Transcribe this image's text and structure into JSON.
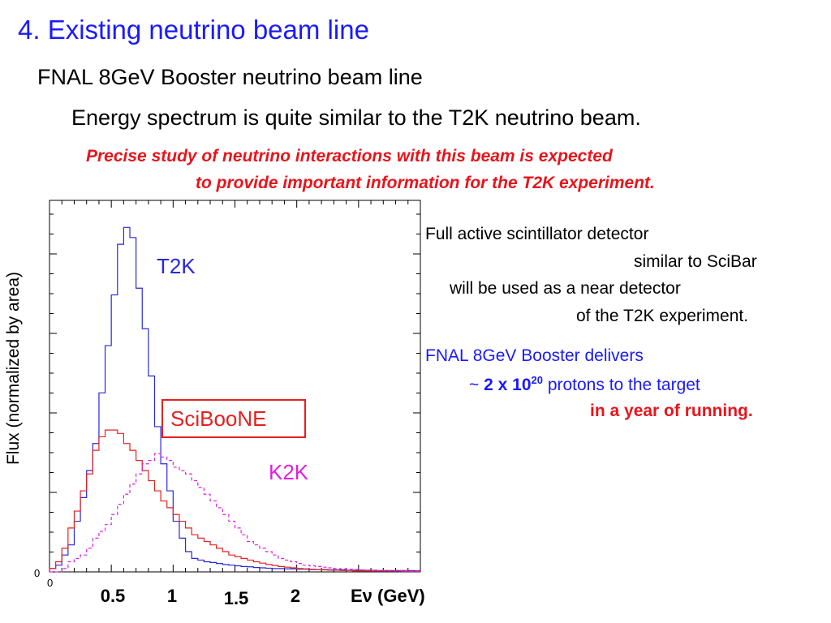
{
  "slide": {
    "title": "4. Existing neutrino beam line",
    "subtitle": "FNAL 8GeV Booster neutrino beam line",
    "statement": "Energy spectrum is quite similar to the T2K neutrino beam.",
    "highlight_lines": [
      "Precise study of neutrino interactions with this beam is expected",
      "to provide important information for the T2K experiment."
    ],
    "side_notes": [
      "Full active scintillator detector",
      "similar to SciBar",
      "will be used as a near detector",
      "of the T2K experiment."
    ],
    "booster": {
      "line1": "FNAL 8GeV Booster delivers",
      "tilde": "~",
      "amount_base": "2 x 10",
      "amount_exp": "20",
      "line2_rest": "protons to the target",
      "line3": "in a year of running."
    }
  },
  "colors": {
    "title": "#1a1aff",
    "highlight": "#e8141b",
    "t2k": "#2828e0",
    "sciboone": "#e62020",
    "k2k": "#e020e0"
  },
  "chart_data": {
    "type": "line",
    "ylabel": "Flux (normalized by area)",
    "xlabel": "Eν (GeV)",
    "xlim": [
      0,
      3.0
    ],
    "ylim": [
      0,
      1.1
    ],
    "y_origin_label": "0",
    "x_origin_label": "0",
    "x_ticks": [
      "0.5",
      "1",
      "1.5",
      "2"
    ],
    "x_tick_values": [
      0.5,
      1.0,
      1.5,
      2.0
    ],
    "bin_width": 0.05,
    "series": [
      {
        "name": "T2K",
        "boxed": false,
        "dashed": false,
        "values": [
          0.01,
          0.02,
          0.05,
          0.08,
          0.15,
          0.22,
          0.3,
          0.38,
          0.53,
          0.67,
          0.82,
          0.97,
          1.02,
          0.99,
          0.84,
          0.72,
          0.58,
          0.43,
          0.32,
          0.24,
          0.15,
          0.1,
          0.06,
          0.04,
          0.035,
          0.03,
          0.028,
          0.025,
          0.022,
          0.02,
          0.018,
          0.016,
          0.015,
          0.013,
          0.012,
          0.011,
          0.01,
          0.01,
          0.009,
          0.009,
          0.008,
          0.008,
          0.007,
          0.007,
          0.007,
          0.006,
          0.006,
          0.006,
          0.005,
          0.005,
          0.005,
          0.005,
          0.005,
          0.004,
          0.004,
          0.004,
          0.004,
          0.004,
          0.004,
          0.003
        ]
      },
      {
        "name": "SciBooNE",
        "boxed": true,
        "dashed": false,
        "values": [
          0.01,
          0.03,
          0.07,
          0.13,
          0.18,
          0.24,
          0.29,
          0.36,
          0.4,
          0.42,
          0.42,
          0.41,
          0.38,
          0.36,
          0.33,
          0.3,
          0.27,
          0.24,
          0.21,
          0.19,
          0.17,
          0.15,
          0.13,
          0.11,
          0.1,
          0.09,
          0.08,
          0.07,
          0.06,
          0.05,
          0.045,
          0.04,
          0.035,
          0.03,
          0.026,
          0.022,
          0.019,
          0.016,
          0.014,
          0.012,
          0.01,
          0.009,
          0.008,
          0.007,
          0.006,
          0.005,
          0.005,
          0.004,
          0.004,
          0.003,
          0.003,
          0.003,
          0.002,
          0.002,
          0.002,
          0.002,
          0.002,
          0.001,
          0.001,
          0.001
        ]
      },
      {
        "name": "K2K",
        "boxed": false,
        "dashed": true,
        "values": [
          0.0,
          0.0,
          0.01,
          0.03,
          0.04,
          0.05,
          0.07,
          0.1,
          0.12,
          0.14,
          0.17,
          0.2,
          0.23,
          0.26,
          0.29,
          0.32,
          0.33,
          0.35,
          0.34,
          0.33,
          0.31,
          0.3,
          0.29,
          0.27,
          0.25,
          0.23,
          0.21,
          0.19,
          0.17,
          0.15,
          0.13,
          0.11,
          0.09,
          0.08,
          0.07,
          0.06,
          0.05,
          0.04,
          0.035,
          0.03,
          0.025,
          0.02,
          0.018,
          0.016,
          0.014,
          0.012,
          0.01,
          0.009,
          0.008,
          0.007,
          0.006,
          0.005,
          0.005,
          0.004,
          0.004,
          0.003,
          0.003,
          0.003,
          0.002,
          0.002
        ]
      }
    ]
  }
}
